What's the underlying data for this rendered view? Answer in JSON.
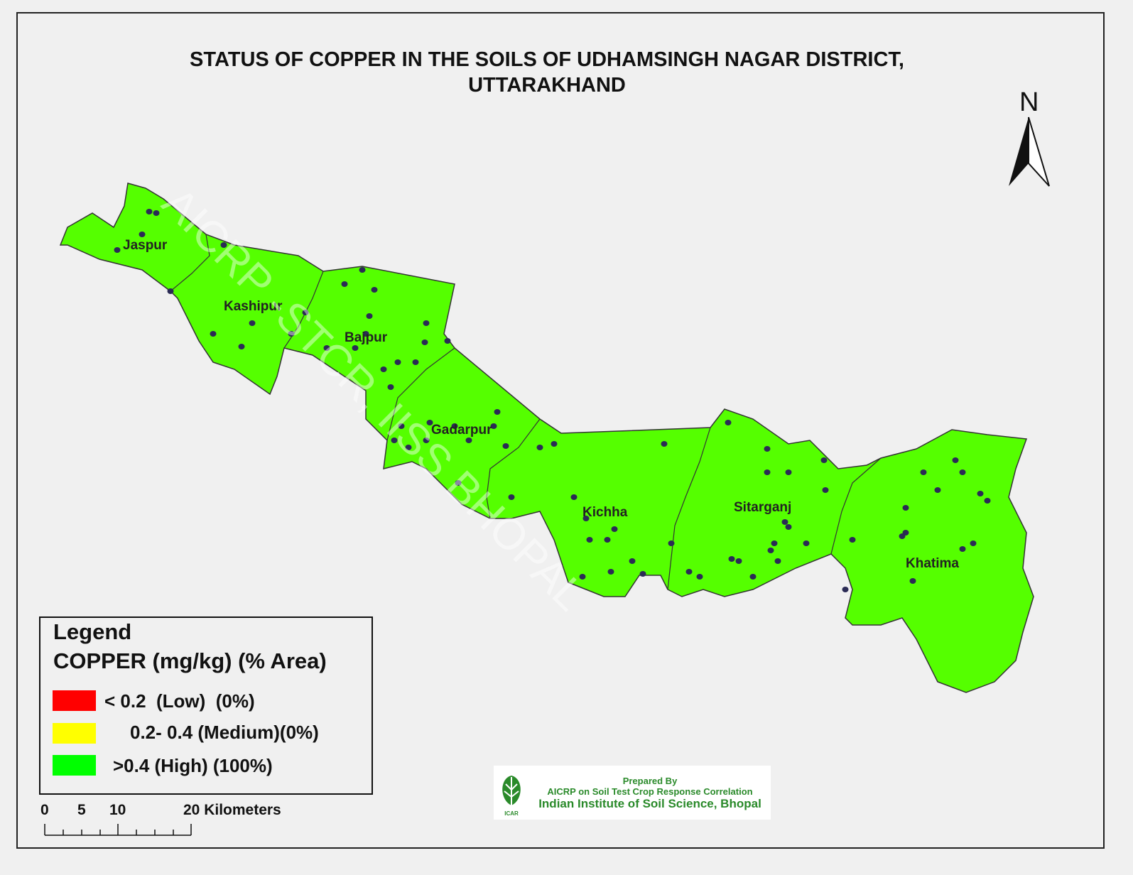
{
  "title_line1": "STATUS OF COPPER IN THE SOILS OF UDHAMSINGH NAGAR  DISTRICT,",
  "title_line2": "UTTARAKHAND",
  "north_label": "N",
  "watermark": "AICRP -STCR, IISS BHOPAL",
  "blocks": [
    "Jaspur",
    "Kashipur",
    "Bajpur",
    "Gadarpur",
    "Kichha",
    "Sitarganj",
    "Khatima"
  ],
  "legend": {
    "heading": "Legend",
    "subheading": "COPPER  (mg/kg) (% Area)",
    "items": [
      {
        "label": "< 0.2  (Low)  (0%)",
        "color": "#ff0000",
        "percent_area": 0
      },
      {
        "label": "0.2- 0.4 (Medium)(0%)",
        "color": "#ffff00",
        "percent_area": 0
      },
      {
        "label": ">0.4 (High) (100%)",
        "color": "#00ff00",
        "percent_area": 100
      }
    ]
  },
  "map_fill_color": "#55ff00",
  "sample_point_color": "#2b2b55",
  "scale_bar": {
    "ticks": [
      "0",
      "5",
      "10",
      "20 Kilometers"
    ]
  },
  "credits": {
    "line1": "Prepared By",
    "line2": "AICRP on Soil Test Crop Response Correlation",
    "line3": "Indian Institute of Soil Science, Bhopal",
    "logo_text": "ICAR"
  }
}
